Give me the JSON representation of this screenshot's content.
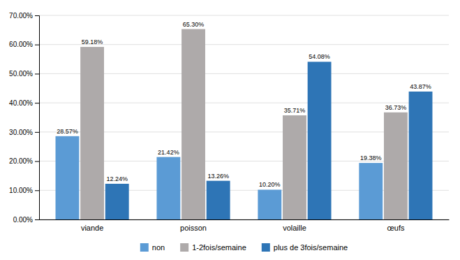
{
  "chart_data": {
    "type": "bar",
    "categories": [
      "viande",
      "poisson",
      "volaille",
      "œufs"
    ],
    "series": [
      {
        "name": "non",
        "color": "#5B9BD5",
        "values": [
          28.57,
          21.42,
          10.2,
          19.38
        ],
        "value_labels": [
          "28.57%",
          "21.42%",
          "10.20%",
          "19.38%"
        ]
      },
      {
        "name": "1-2fois/semaine",
        "color": "#AEAAAA",
        "values": [
          59.18,
          65.3,
          35.71,
          36.73
        ],
        "value_labels": [
          "59.18%",
          "65.30%",
          "35.71%",
          "36.73%"
        ]
      },
      {
        "name": "plus de 3fois/semaine",
        "color": "#2E75B6",
        "values": [
          12.24,
          13.26,
          54.08,
          43.87
        ],
        "value_labels": [
          "12.24%",
          "13.26%",
          "54.08%",
          "43.87%"
        ]
      }
    ],
    "ylim": [
      0,
      70
    ],
    "yticks": [
      {
        "value": 0,
        "label": "0.00%"
      },
      {
        "value": 10,
        "label": "10.00%"
      },
      {
        "value": 20,
        "label": "20.00%"
      },
      {
        "value": 30,
        "label": "30.00%"
      },
      {
        "value": 40,
        "label": "40.00%"
      },
      {
        "value": 50,
        "label": "50.00%"
      },
      {
        "value": 60,
        "label": "60.00%"
      },
      {
        "value": 70,
        "label": "70.00%"
      }
    ],
    "grid": true,
    "data_labels": true,
    "legend": "bottom"
  }
}
